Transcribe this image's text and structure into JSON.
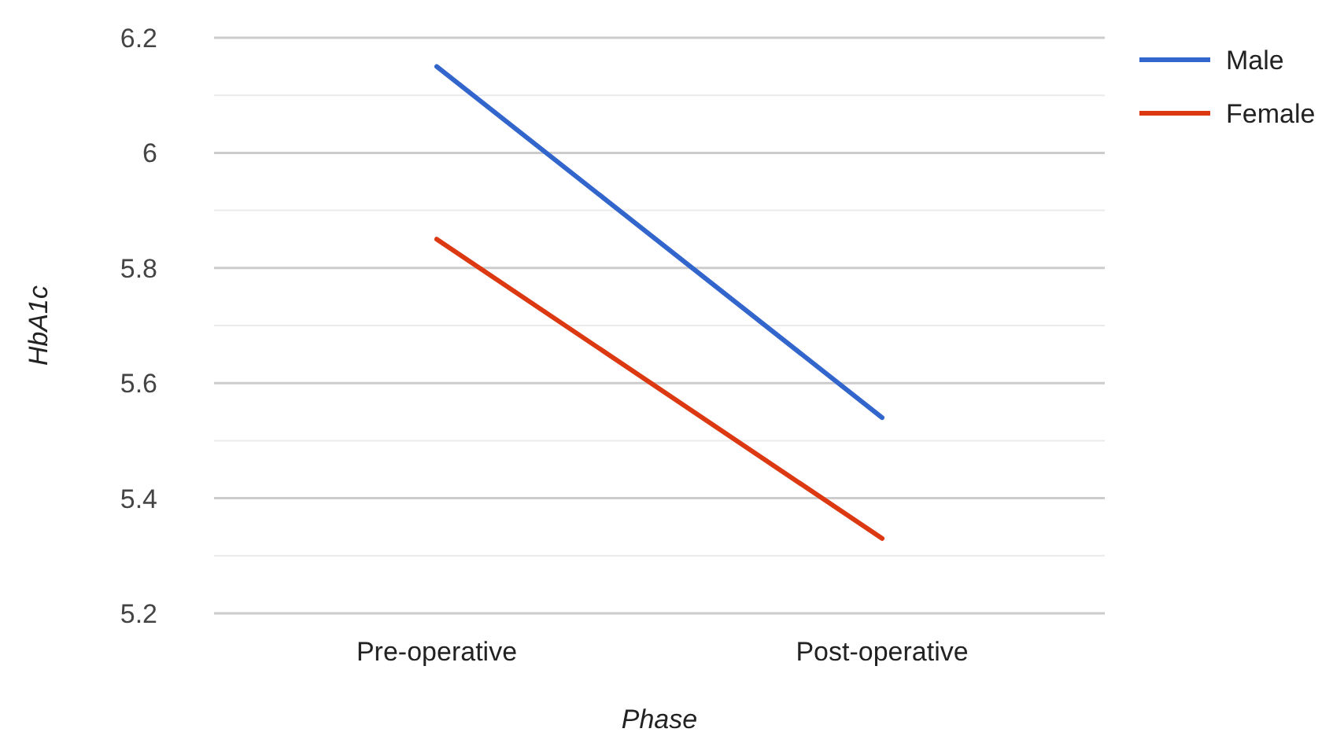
{
  "chart_data": {
    "type": "line",
    "xlabel": "Phase",
    "ylabel": "HbA1c",
    "categories": [
      "Pre-operative",
      "Post-operative"
    ],
    "series": [
      {
        "name": "Male",
        "color": "#3366cc",
        "values": [
          6.15,
          5.54
        ]
      },
      {
        "name": "Female",
        "color": "#dc3912",
        "values": [
          5.85,
          5.33
        ]
      }
    ],
    "ylim": [
      5.2,
      6.2
    ],
    "yticks": [
      5.2,
      {
        "value": 5.3,
        "label": null
      },
      5.4,
      {
        "value": 5.5,
        "label": null
      },
      5.6,
      {
        "value": 5.7,
        "label": null
      },
      5.8,
      {
        "value": 5.9,
        "label": null
      },
      6,
      {
        "value": 6.1,
        "label": null
      },
      6.2
    ],
    "grid": "y",
    "legend": "right",
    "marker": "none",
    "line_style": "solid"
  }
}
